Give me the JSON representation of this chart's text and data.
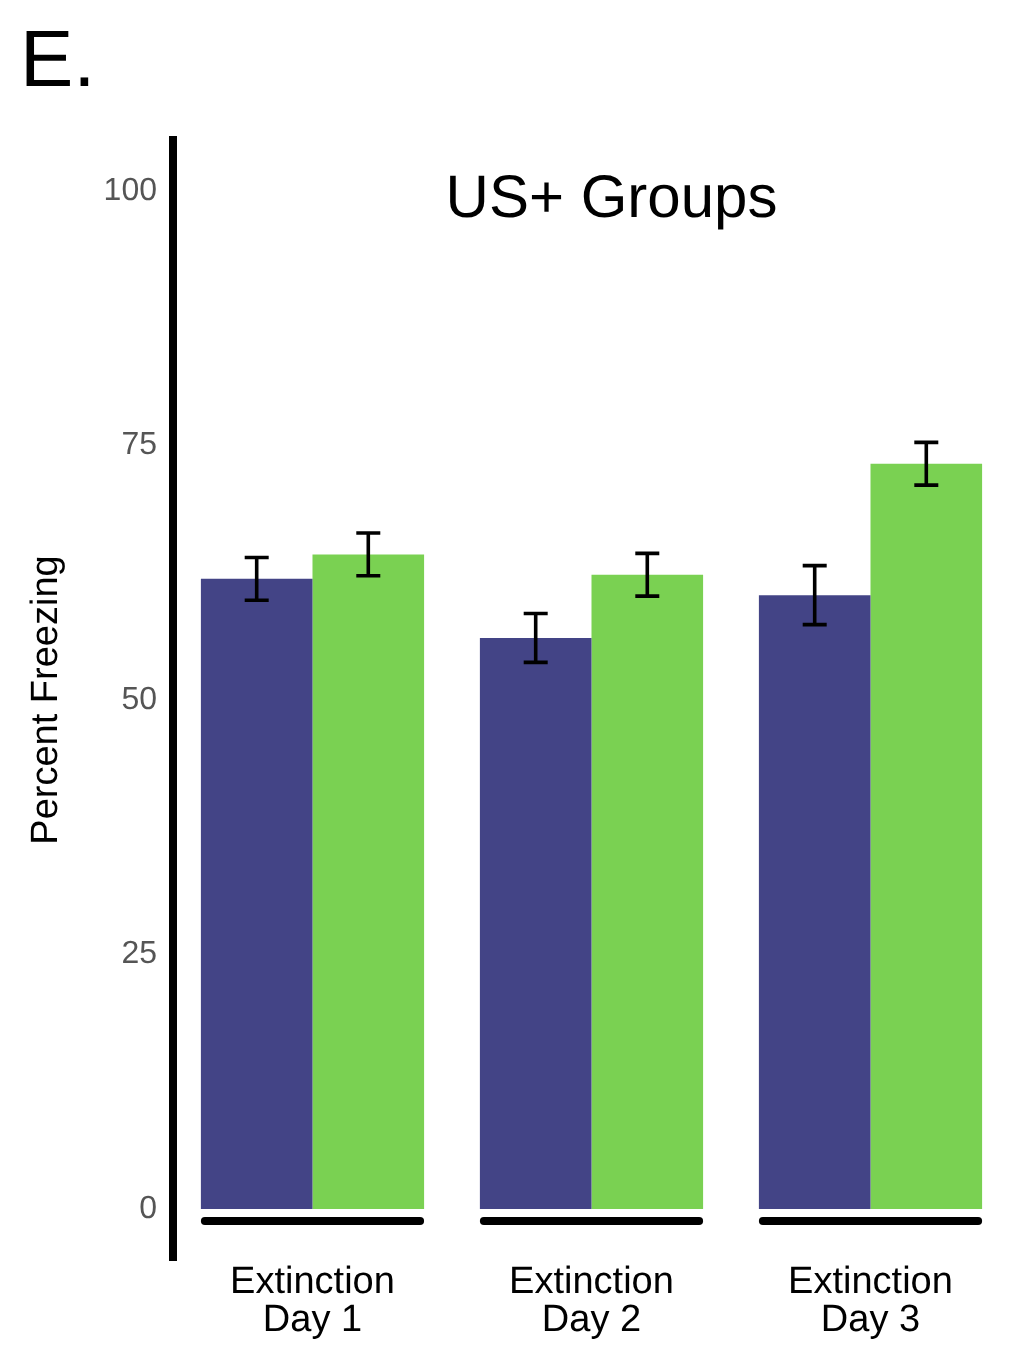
{
  "chart_data": {
    "type": "bar",
    "title": "US+ Groups",
    "ylabel": "Percent Freezing",
    "annotations": [
      "E."
    ],
    "categories": [
      "Extinction\nDay 1",
      "Extinction\nDay 2",
      "Extinction\nDay 3"
    ],
    "series": [
      {
        "color": "#434486",
        "values": [
          61.9,
          56.1,
          60.3
        ],
        "errors": [
          2.1,
          2.4,
          2.9
        ]
      },
      {
        "color": "#7ad152",
        "values": [
          64.3,
          62.3,
          73.2
        ],
        "errors": [
          2.1,
          2.1,
          2.1
        ]
      }
    ],
    "ylim": [
      -5,
      105
    ],
    "yticks": [
      0,
      25,
      50,
      75,
      100
    ],
    "grid": false,
    "legend": false
  }
}
